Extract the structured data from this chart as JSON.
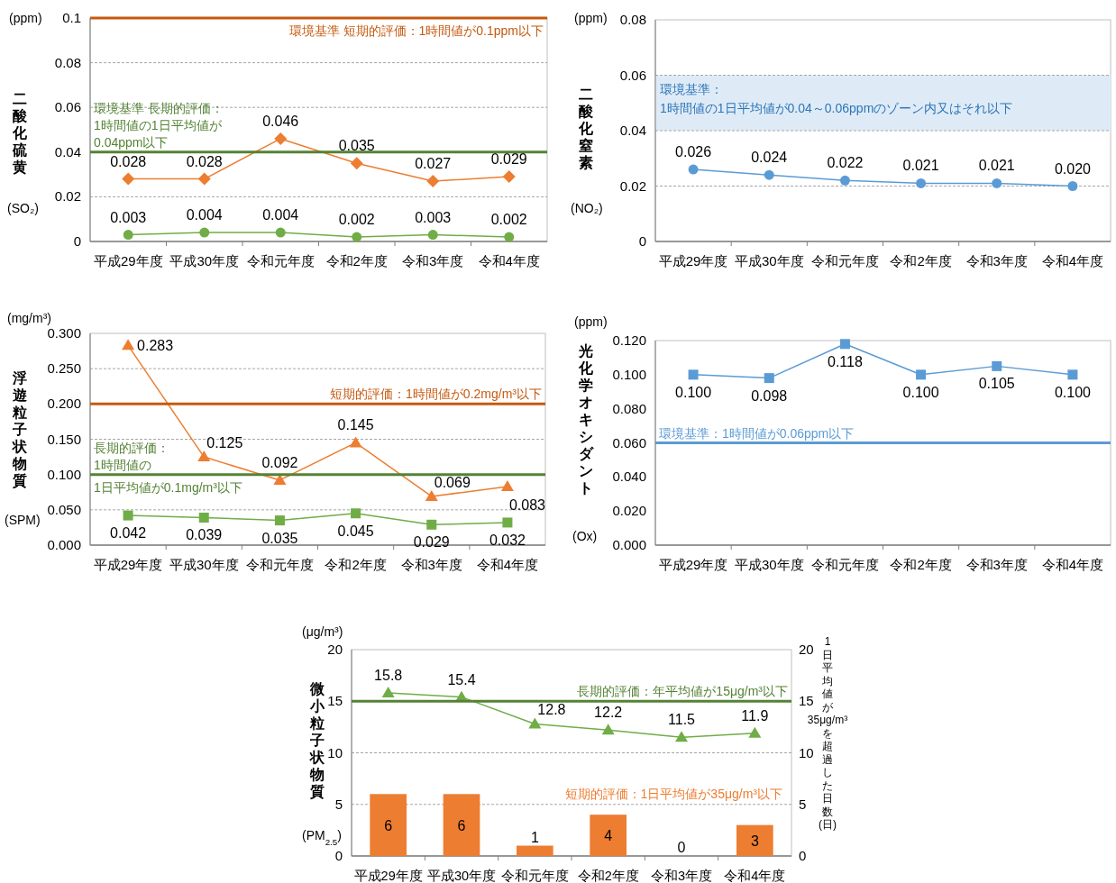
{
  "chart_data": [
    {
      "type": "line",
      "categories": [
        "平成29年度",
        "平成30年度",
        "令和元年度",
        "令和2年度",
        "令和3年度",
        "令和4年度"
      ],
      "ylabel": "二酸化硫黄",
      "annotations": [
        "(ppm)",
        "(SO₂)"
      ],
      "ylim": [
        0,
        0.1
      ],
      "yticks": [
        0,
        0.02,
        0.04,
        0.06,
        0.08,
        0.1
      ],
      "grid": "y",
      "series": [
        {
          "color": "#ed7d31",
          "marker": "diamond",
          "values": [
            0.028,
            0.028,
            0.046,
            0.035,
            0.027,
            0.029
          ],
          "value_labels": [
            "0.028",
            "0.028",
            "0.046",
            "0.035",
            "0.027",
            "0.029"
          ]
        },
        {
          "color": "#70ad47",
          "marker": "circle",
          "values": [
            0.003,
            0.004,
            0.004,
            0.002,
            0.003,
            0.002
          ],
          "value_labels": [
            "0.003",
            "0.004",
            "0.004",
            "0.002",
            "0.003",
            "0.002"
          ]
        }
      ],
      "ref_lines": [
        {
          "axis": "y",
          "value": 0.1,
          "label": "環境基準 短期的評価：1時間値が0.1ppm以下",
          "color": "#c55a11"
        },
        {
          "axis": "y",
          "value": 0.04,
          "label": "環境基準 長期的評価：1時間値の1日平均値が0.04ppm以下",
          "color": "#548235"
        }
      ]
    },
    {
      "type": "line",
      "categories": [
        "平成29年度",
        "平成30年度",
        "令和元年度",
        "令和2年度",
        "令和3年度",
        "令和4年度"
      ],
      "ylabel": "二酸化窒素",
      "annotations": [
        "(ppm)",
        "(NO₂)"
      ],
      "ylim": [
        0,
        0.08
      ],
      "yticks": [
        0,
        0.02,
        0.04,
        0.06,
        0.08
      ],
      "grid": "y",
      "series": [
        {
          "color": "#5b9bd5",
          "marker": "circle",
          "values": [
            0.026,
            0.024,
            0.022,
            0.021,
            0.021,
            0.02
          ],
          "value_labels": [
            "0.026",
            "0.024",
            "0.022",
            "0.021",
            "0.021",
            "0.020"
          ]
        }
      ],
      "bands": [
        {
          "axis": "y",
          "from": 0.04,
          "to": 0.06,
          "label": "環境基準：1時間値の1日平均値が0.04～0.06ppmのゾーン内又はそれ以下",
          "color": "#deebf7"
        }
      ]
    },
    {
      "type": "line",
      "categories": [
        "平成29年度",
        "平成30年度",
        "令和元年度",
        "令和2年度",
        "令和3年度",
        "令和4年度"
      ],
      "ylabel": "浮遊粒子状物質",
      "annotations": [
        "(mg/m³)",
        "(SPM)"
      ],
      "ylim": [
        0,
        0.3
      ],
      "yticks": [
        {
          "value": 0,
          "label": "0.000"
        },
        {
          "value": 0.05,
          "label": "0.050"
        },
        {
          "value": 0.1,
          "label": "0.100"
        },
        {
          "value": 0.15,
          "label": "0.150"
        },
        {
          "value": 0.2,
          "label": "0.200"
        },
        {
          "value": 0.25,
          "label": "0.250"
        },
        {
          "value": 0.3,
          "label": "0.300"
        }
      ],
      "grid": "y",
      "series": [
        {
          "color": "#ed7d31",
          "marker": "triangle",
          "values": [
            0.283,
            0.125,
            0.092,
            0.145,
            0.069,
            0.083
          ],
          "value_labels": [
            "0.283",
            "0.125",
            "0.092",
            "0.145",
            "0.069",
            "0.083"
          ]
        },
        {
          "color": "#70ad47",
          "marker": "square",
          "values": [
            0.042,
            0.039,
            0.035,
            0.045,
            0.029,
            0.032
          ],
          "value_labels": [
            "0.042",
            "0.039",
            "0.035",
            "0.045",
            "0.029",
            "0.032"
          ]
        }
      ],
      "ref_lines": [
        {
          "axis": "y",
          "value": 0.2,
          "label": "短期的評価：1時間値が0.2mg/m³以下",
          "color": "#c55a11"
        },
        {
          "axis": "y",
          "value": 0.1,
          "label": "長期的評価：1時間値の1日平均値が0.1mg/m³以下",
          "color": "#548235"
        }
      ]
    },
    {
      "type": "line",
      "categories": [
        "平成29年度",
        "平成30年度",
        "令和元年度",
        "令和2年度",
        "令和3年度",
        "令和4年度"
      ],
      "ylabel": "光化学オキシダント",
      "annotations": [
        "(ppm)",
        "(Ox)"
      ],
      "ylim": [
        0,
        0.12
      ],
      "yticks": [
        {
          "value": 0,
          "label": "0.000"
        },
        {
          "value": 0.02,
          "label": "0.020"
        },
        {
          "value": 0.04,
          "label": "0.040"
        },
        {
          "value": 0.06,
          "label": "0.060"
        },
        {
          "value": 0.08,
          "label": "0.080"
        },
        {
          "value": 0.1,
          "label": "0.100"
        },
        {
          "value": 0.12,
          "label": "0.120"
        }
      ],
      "series": [
        {
          "color": "#5b9bd5",
          "marker": "square",
          "values": [
            0.1,
            0.098,
            0.118,
            0.1,
            0.105,
            0.1
          ],
          "value_labels": [
            "0.100",
            "0.098",
            "0.118",
            "0.100",
            "0.105",
            "0.100"
          ]
        }
      ],
      "ref_lines": [
        {
          "axis": "y",
          "value": 0.06,
          "label": "環境基準：1時間値が0.06ppm以下",
          "color": "#5b9bd5"
        }
      ]
    },
    {
      "type": "line",
      "categories": [
        "平成29年度",
        "平成30年度",
        "令和元年度",
        "令和2年度",
        "令和3年度",
        "令和4年度"
      ],
      "ylabel": "微小粒子状物質",
      "y2label": "1日平均値が35μg/m³を超過した日数(日)",
      "annotations": [
        "(μg/m³)",
        "(PM$_{2.5}$)",
        "短期的評価：1日平均値が35μg/m³以下"
      ],
      "ylim": [
        0,
        20
      ],
      "yticks": [
        0,
        5,
        10,
        15,
        20
      ],
      "y2lim": [
        0,
        20
      ],
      "y2ticks": [
        0,
        5,
        10,
        15,
        20
      ],
      "grid": "y",
      "series": [
        {
          "type": "bar",
          "axis": "y2",
          "color": "#ed7d31",
          "values": [
            6,
            6,
            1,
            4,
            0,
            3
          ],
          "value_labels": [
            "6",
            "6",
            "1",
            "4",
            "0",
            "3"
          ]
        },
        {
          "color": "#70ad47",
          "marker": "triangle",
          "values": [
            15.8,
            15.4,
            12.8,
            12.2,
            11.5,
            11.9
          ],
          "value_labels": [
            "15.8",
            "15.4",
            "12.8",
            "12.2",
            "11.5",
            "11.9"
          ]
        }
      ],
      "ref_lines": [
        {
          "axis": "y",
          "value": 15,
          "label": "長期的評価：年平均値が15μg/m³以下",
          "color": "#548235"
        }
      ]
    }
  ]
}
